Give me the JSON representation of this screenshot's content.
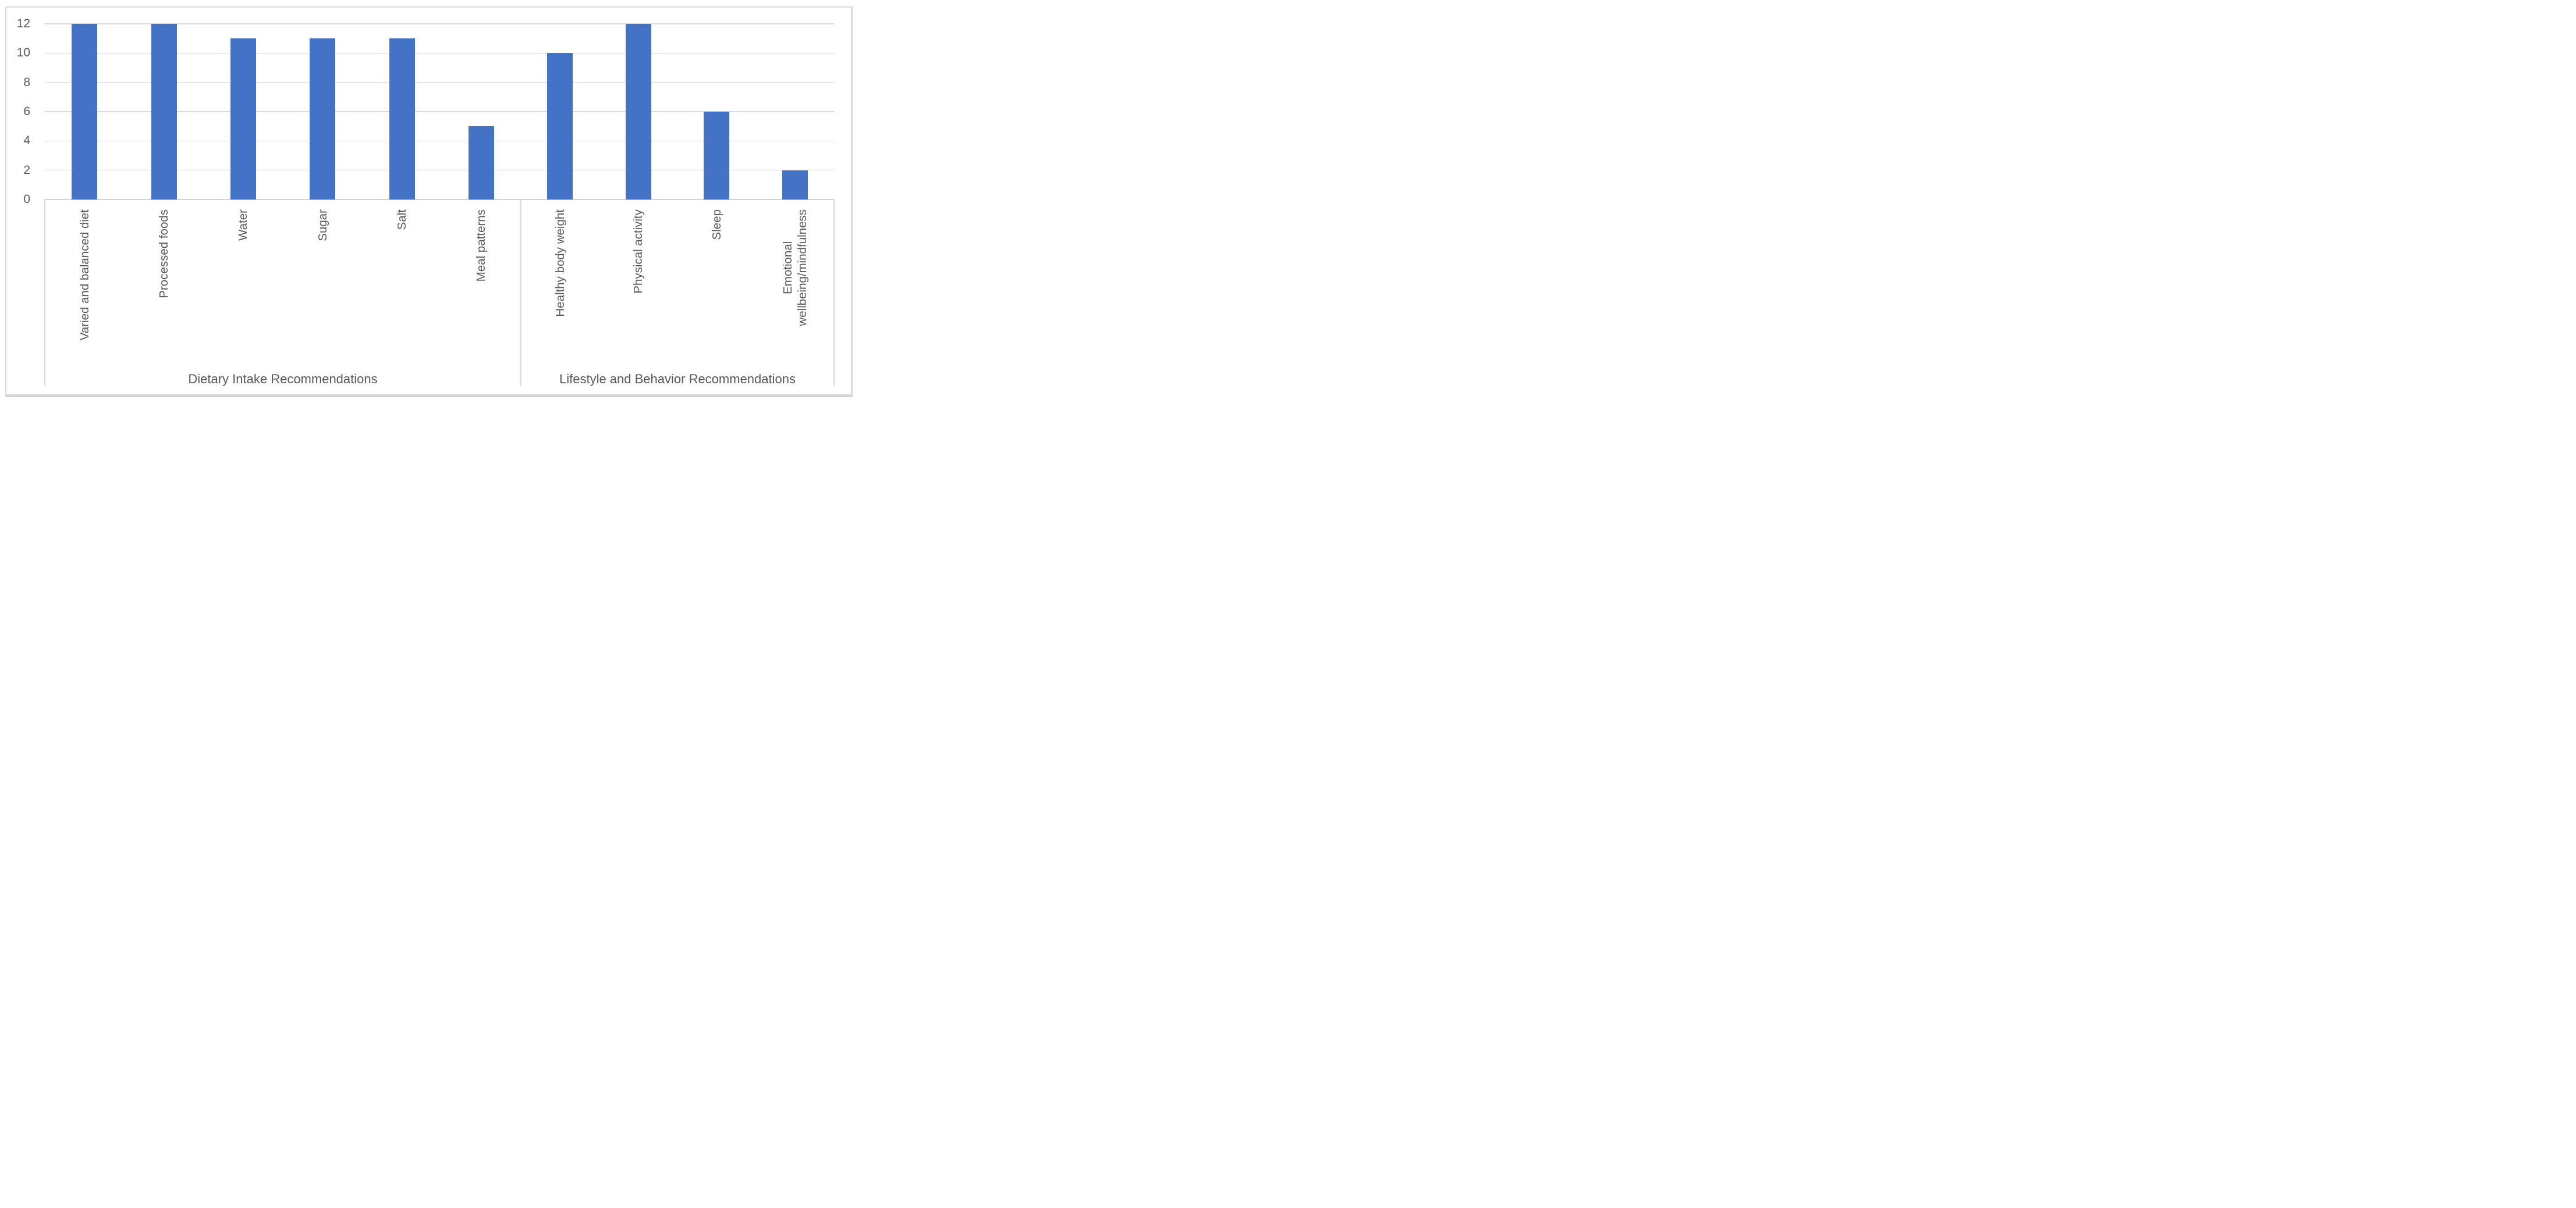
{
  "chart_data": {
    "type": "bar",
    "title": "",
    "xlabel": "",
    "ylabel": "",
    "ylim": [
      0,
      12
    ],
    "y_ticks": [
      0,
      2,
      4,
      6,
      8,
      10,
      12
    ],
    "grid": "horizontal",
    "legend": "none",
    "bar_color": "#4472C4",
    "gridline_color": "#D9D9D9",
    "text_color": "#595959",
    "border_color": "#D9D9D9",
    "categories": [
      "Varied and balanced diet",
      "Processed foods",
      "Water",
      "Sugar",
      "Salt",
      "Meal patterns",
      "Healthy body weight",
      "Physical activity",
      "Sleep",
      "Emotional wellbeing/mindfulness"
    ],
    "values": [
      12,
      12,
      11,
      11,
      11,
      5,
      10,
      12,
      6,
      2
    ],
    "groups": [
      {
        "label": "Dietary Intake Recommendations",
        "categories": [
          {
            "label": "Varied and balanced diet",
            "lines": [
              "Varied and balanced diet"
            ],
            "value": 12
          },
          {
            "label": "Processed foods",
            "lines": [
              "Processed foods"
            ],
            "value": 12
          },
          {
            "label": "Water",
            "lines": [
              "Water"
            ],
            "value": 11
          },
          {
            "label": "Sugar",
            "lines": [
              "Sugar"
            ],
            "value": 11
          },
          {
            "label": "Salt",
            "lines": [
              "Salt"
            ],
            "value": 11
          },
          {
            "label": "Meal patterns",
            "lines": [
              "Meal patterns"
            ],
            "value": 5
          }
        ]
      },
      {
        "label": "Lifestyle and Behavior Recommendations",
        "categories": [
          {
            "label": "Healthy body weight",
            "lines": [
              "Healthy body weight"
            ],
            "value": 10
          },
          {
            "label": "Physical activity",
            "lines": [
              "Physical activity"
            ],
            "value": 12
          },
          {
            "label": "Sleep",
            "lines": [
              "Sleep"
            ],
            "value": 6
          },
          {
            "label": "Emotional wellbeing/mindfulness",
            "lines": [
              "Emotional",
              "wellbeing/mindfulness"
            ],
            "value": 2
          }
        ]
      }
    ]
  }
}
